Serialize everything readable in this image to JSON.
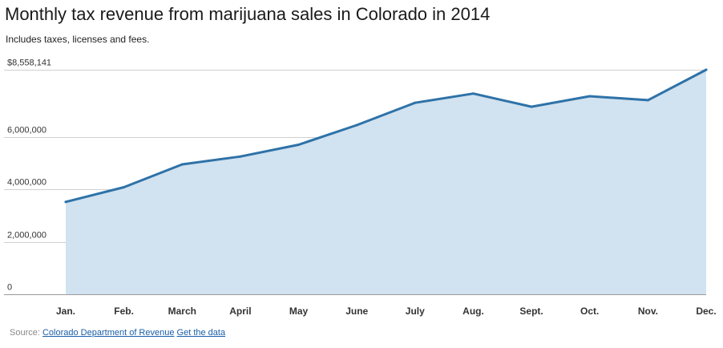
{
  "chart_data": {
    "type": "area",
    "title": "Monthly tax revenue from marijuana sales in Colorado in 2014",
    "subtitle": "Includes taxes, licenses and fees.",
    "xlabel": "",
    "ylabel": "",
    "categories": [
      "Jan.",
      "Feb.",
      "March",
      "April",
      "May",
      "June",
      "July",
      "Aug.",
      "Sept.",
      "Oct.",
      "Nov.",
      "Dec."
    ],
    "series": [
      {
        "name": "Monthly tax revenue",
        "values": [
          3520000,
          4080000,
          4950000,
          5250000,
          5700000,
          6450000,
          7300000,
          7650000,
          7150000,
          7550000,
          7400000,
          8558141
        ]
      }
    ],
    "ylim": [
      0,
      8558141
    ],
    "yticks": [
      0,
      2000000,
      4000000,
      6000000,
      8558141
    ],
    "ytick_labels": [
      "0",
      "2,000,000",
      "4,000,000",
      "6,000,000",
      "$8,558,141"
    ],
    "grid": true,
    "line_color": "#2e72a8",
    "fill_color": "#d1e2f0",
    "grid_color": "#d0d0d0"
  },
  "source": {
    "label": "Source:",
    "link_text": "Colorado Department of Revenue",
    "data_link_text": "Get the data"
  }
}
